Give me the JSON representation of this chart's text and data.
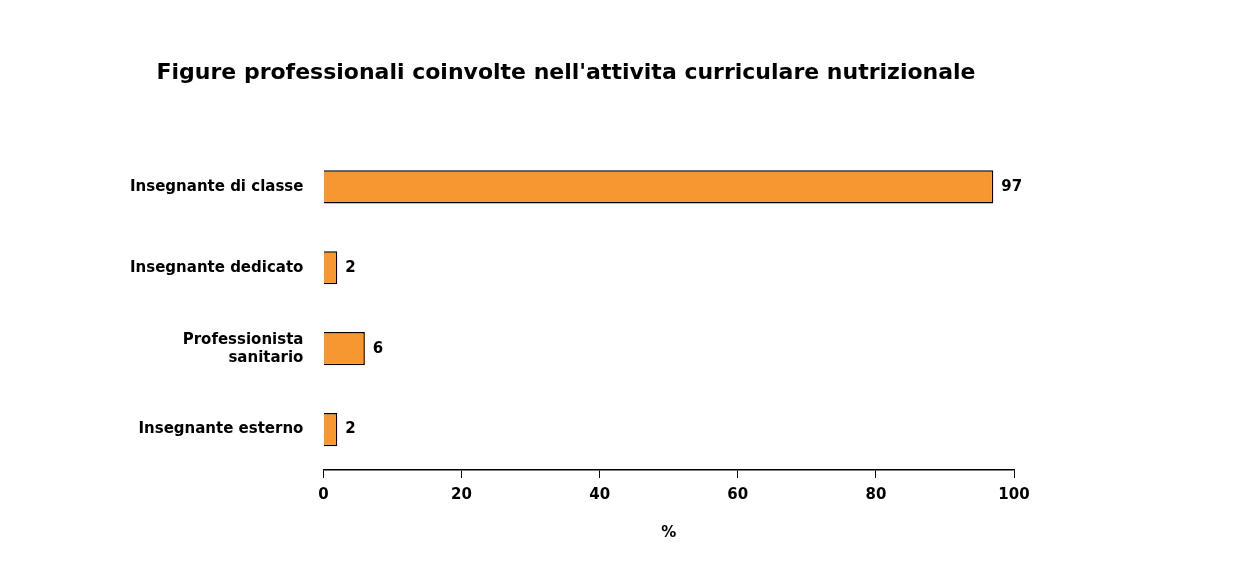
{
  "chart_data": {
    "type": "bar",
    "orientation": "horizontal",
    "title": "Figure professionali coinvolte nell'attivita curriculare nutrizionale",
    "xlabel": "%",
    "categories": [
      "Insegnante di classe",
      "Insegnante dedicato",
      "Professionista sanitario",
      "Insegnante esterno"
    ],
    "values": [
      97,
      2,
      6,
      2
    ],
    "color": "#f7972f",
    "xlim": [
      0,
      100
    ],
    "xticks": [
      0,
      20,
      40,
      60,
      80,
      100
    ],
    "grid": false,
    "legend": false,
    "data_labels": true
  }
}
